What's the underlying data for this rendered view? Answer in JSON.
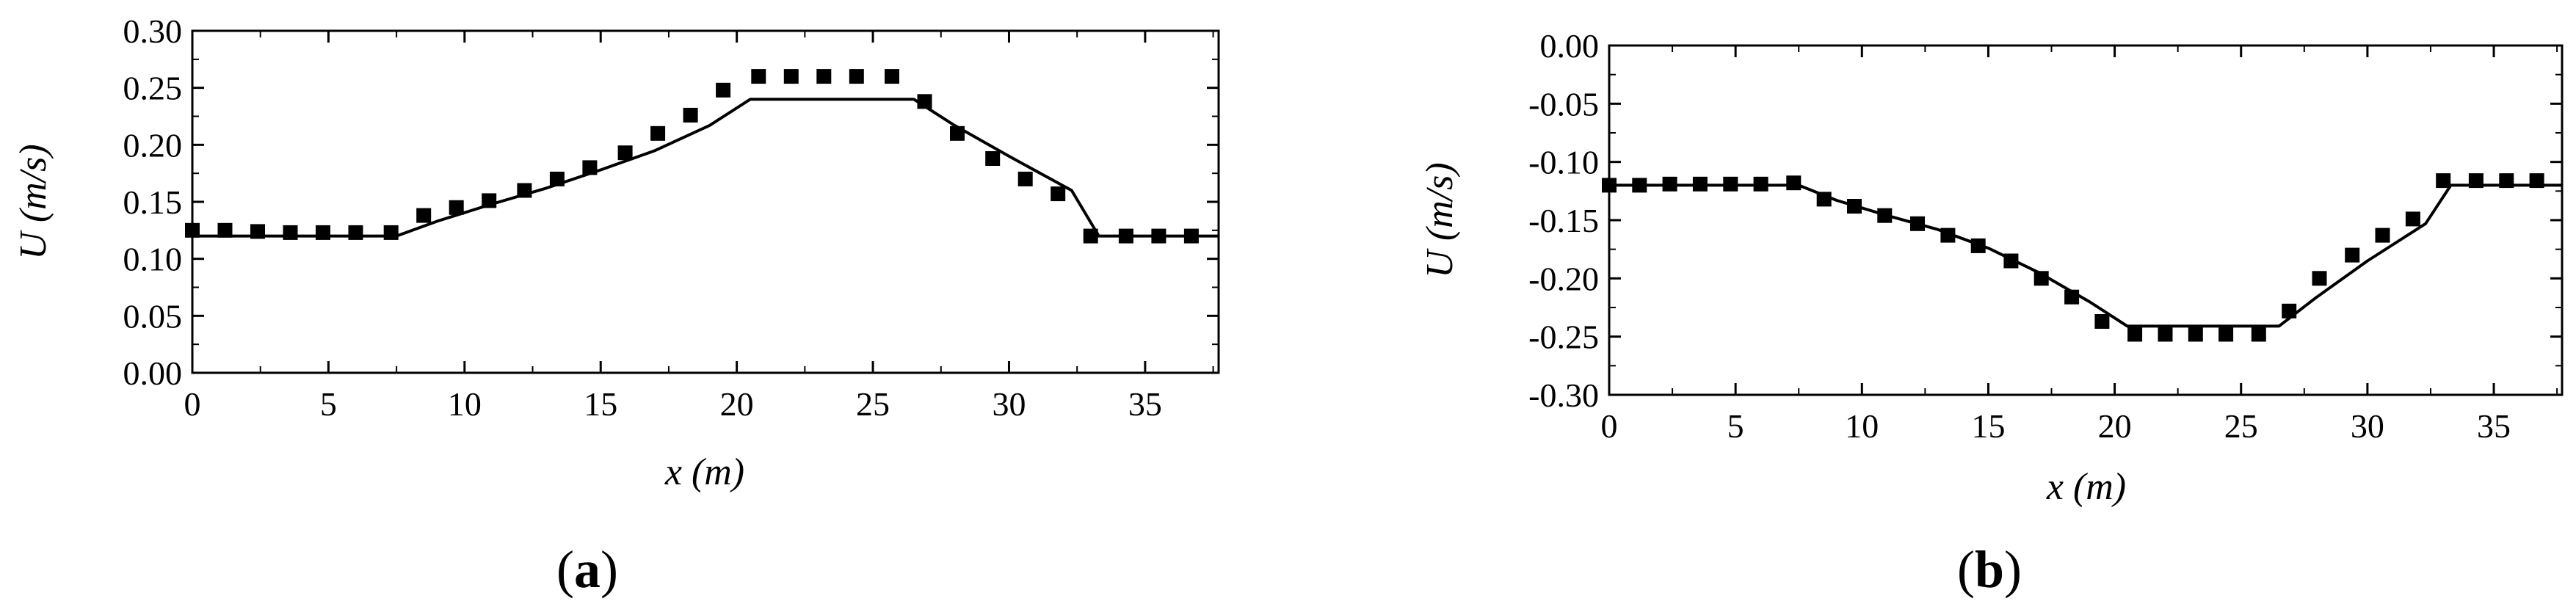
{
  "figure": {
    "panels": [
      {
        "open": "(",
        "letter": "a",
        "close": ")"
      },
      {
        "open": "(",
        "letter": "b",
        "close": ")"
      }
    ]
  },
  "chart_data": [
    {
      "type": "line",
      "xlabel": "x (m)",
      "ylabel": "U (m/s)",
      "xlim": [
        0,
        37.7
      ],
      "ylim": [
        0,
        0.3
      ],
      "xticks": [
        0,
        5,
        10,
        15,
        20,
        25,
        30,
        35
      ],
      "yticks": [
        0.0,
        0.05,
        0.1,
        0.15,
        0.2,
        0.25,
        0.3
      ],
      "xtick_labels": [
        "0",
        "5",
        "10",
        "15",
        "20",
        "25",
        "30",
        "35"
      ],
      "ytick_labels": [
        "0.00",
        "0.05",
        "0.10",
        "0.15",
        "0.20",
        "0.25",
        "0.30"
      ],
      "grid": false,
      "series": [
        {
          "style": "line",
          "color": "#000000",
          "x": [
            0,
            7.5,
            9,
            11,
            13,
            15,
            17,
            19,
            20.5,
            26.5,
            28,
            30,
            32.3,
            33.3,
            37.7
          ],
          "y": [
            0.12,
            0.12,
            0.133,
            0.148,
            0.162,
            0.178,
            0.195,
            0.217,
            0.24,
            0.24,
            0.217,
            0.19,
            0.16,
            0.12,
            0.12
          ]
        },
        {
          "style": "square-markers",
          "color": "#000000",
          "x": [
            0,
            1.2,
            2.4,
            3.6,
            4.8,
            6.0,
            7.3,
            8.5,
            9.7,
            10.9,
            12.2,
            13.4,
            14.6,
            15.9,
            17.1,
            18.3,
            19.5,
            20.8,
            22.0,
            23.2,
            24.4,
            25.7,
            26.9,
            28.1,
            29.4,
            30.6,
            31.8,
            33.0,
            34.3,
            35.5,
            36.7
          ],
          "y": [
            0.125,
            0.125,
            0.124,
            0.123,
            0.123,
            0.123,
            0.123,
            0.138,
            0.145,
            0.151,
            0.16,
            0.17,
            0.18,
            0.193,
            0.21,
            0.226,
            0.248,
            0.26,
            0.26,
            0.26,
            0.26,
            0.26,
            0.238,
            0.21,
            0.188,
            0.17,
            0.157,
            0.12,
            0.12,
            0.12,
            0.12
          ]
        }
      ]
    },
    {
      "type": "line",
      "xlabel": "x (m)",
      "ylabel": "U (m/s)",
      "xlim": [
        0,
        37.7
      ],
      "ylim": [
        -0.3,
        0.0
      ],
      "xticks": [
        0,
        5,
        10,
        15,
        20,
        25,
        30,
        35
      ],
      "yticks": [
        -0.3,
        -0.25,
        -0.2,
        -0.15,
        -0.1,
        -0.05,
        0.0
      ],
      "xtick_labels": [
        "0",
        "5",
        "10",
        "15",
        "20",
        "25",
        "30",
        "35"
      ],
      "ytick_labels": [
        "-0.30",
        "-0.25",
        "-0.20",
        "-0.15",
        "-0.10",
        "-0.05",
        "0.00"
      ],
      "grid": false,
      "series": [
        {
          "style": "line",
          "color": "#000000",
          "x": [
            0,
            7.5,
            9,
            11,
            13,
            15,
            17,
            19,
            20.5,
            26.5,
            28,
            30,
            32.3,
            33.3,
            37.7
          ],
          "y": [
            -0.12,
            -0.12,
            -0.133,
            -0.146,
            -0.158,
            -0.174,
            -0.195,
            -0.22,
            -0.241,
            -0.241,
            -0.216,
            -0.185,
            -0.153,
            -0.12,
            -0.12
          ]
        },
        {
          "style": "square-markers",
          "color": "#000000",
          "x": [
            0,
            1.2,
            2.4,
            3.6,
            4.8,
            6.0,
            7.3,
            8.5,
            9.7,
            10.9,
            12.2,
            13.4,
            14.6,
            15.9,
            17.1,
            18.3,
            19.5,
            20.8,
            22.0,
            23.2,
            24.4,
            25.7,
            26.9,
            28.1,
            29.4,
            30.6,
            31.8,
            33.0,
            34.3,
            35.5,
            36.7
          ],
          "y": [
            -0.12,
            -0.12,
            -0.119,
            -0.119,
            -0.119,
            -0.119,
            -0.118,
            -0.132,
            -0.138,
            -0.146,
            -0.153,
            -0.163,
            -0.172,
            -0.185,
            -0.2,
            -0.216,
            -0.237,
            -0.248,
            -0.248,
            -0.248,
            -0.248,
            -0.248,
            -0.228,
            -0.2,
            -0.18,
            -0.163,
            -0.149,
            -0.116,
            -0.116,
            -0.116,
            -0.116
          ]
        }
      ]
    }
  ]
}
